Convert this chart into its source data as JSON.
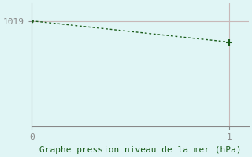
{
  "x_data": [
    0,
    1
  ],
  "y_data": [
    1019.0,
    1017.2
  ],
  "background_color": "#e0f5f5",
  "line_color": "#1a5c1a",
  "marker_color": "#1a5c1a",
  "grid_color": "#c8b8b8",
  "axis_color": "#888888",
  "text_color": "#1a5c1a",
  "xlabel": "Graphe pression niveau de la mer (hPa)",
  "xlim": [
    0,
    1.1
  ],
  "ylim": [
    1010,
    1020.5
  ],
  "ytick_value": 1019,
  "xtick_values": [
    0,
    1
  ],
  "title_fontsize": 8,
  "label_fontsize": 8
}
